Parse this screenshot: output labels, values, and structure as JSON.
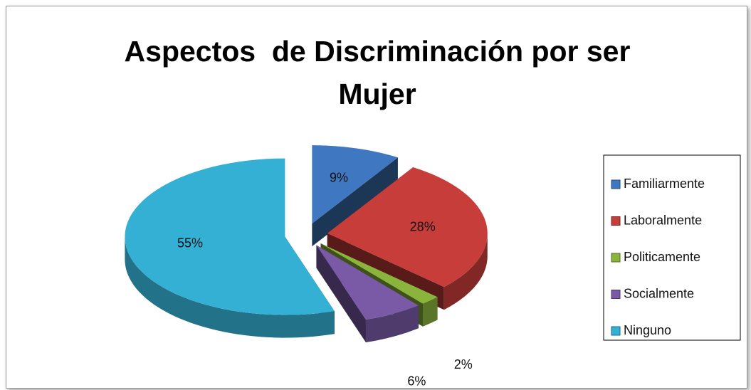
{
  "chart_data": {
    "type": "pie",
    "title": "Aspectos  de Discriminación por ser Mujer",
    "categories": [
      "Familiarmente",
      "Laboralmente",
      "Politicamente",
      "Socialmente",
      "Ninguno"
    ],
    "values": [
      9,
      28,
      2,
      6,
      55
    ],
    "value_labels": [
      "9%",
      "28%",
      "2%",
      "6%",
      "55%"
    ],
    "colors": [
      "#3f78c0",
      "#c63d3a",
      "#8bb43c",
      "#7a5aa6",
      "#34b0d4"
    ],
    "legend": "right"
  }
}
